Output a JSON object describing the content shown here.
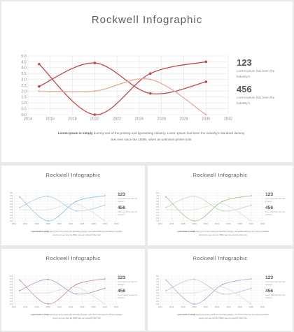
{
  "title": "Rockwell Infographic",
  "stats": [
    {
      "number": "123",
      "desc": "Lorem ipsum has been the industry's"
    },
    {
      "number": "456",
      "desc": "Lorem ipsum has been the industry's"
    }
  ],
  "caption": {
    "bold": "Lorem Ipsum is simply",
    "text": " dummy text of the printing and typesetting industry. Lorem Ipsum has been the industry's standard dummy text ever since the 1500s, when an unknown printer took"
  },
  "thumbnail_colors": {
    "top_left": [
      "#7fb8e3",
      "#9ec8e8"
    ],
    "top_right": [
      "#8fbf7f",
      "#b8d4a8"
    ],
    "bottom_left": [
      "#c07ab0",
      "#a08ac0"
    ],
    "bottom_right": [
      "#a89ccc",
      "#c6b6dd"
    ]
  },
  "chart_data": {
    "type": "line",
    "x_ticks": [
      2014,
      2016,
      2018,
      2020,
      2022,
      2024,
      2026,
      2028,
      2030,
      2032
    ],
    "y_ticks": [
      0,
      0.5,
      1,
      1.5,
      2,
      2.5,
      3,
      3.5,
      4,
      4.5,
      5
    ],
    "xlim": [
      2014,
      2032
    ],
    "ylim": [
      0,
      5
    ],
    "grid": true,
    "series": [
      {
        "color": "#c44545",
        "marker": true,
        "x": [
          2015,
          2020,
          2025,
          2030
        ],
        "y": [
          4.3,
          0.0,
          3.5,
          4.5
        ]
      },
      {
        "color": "#c44545",
        "marker": true,
        "x": [
          2015,
          2020,
          2025,
          2030
        ],
        "y": [
          2.4,
          4.4,
          1.8,
          2.8
        ]
      },
      {
        "color": "#e8a898",
        "marker": false,
        "x": [
          2015,
          2020,
          2025,
          2030
        ],
        "y": [
          2.0,
          2.0,
          3.0,
          0.0
        ]
      }
    ]
  }
}
